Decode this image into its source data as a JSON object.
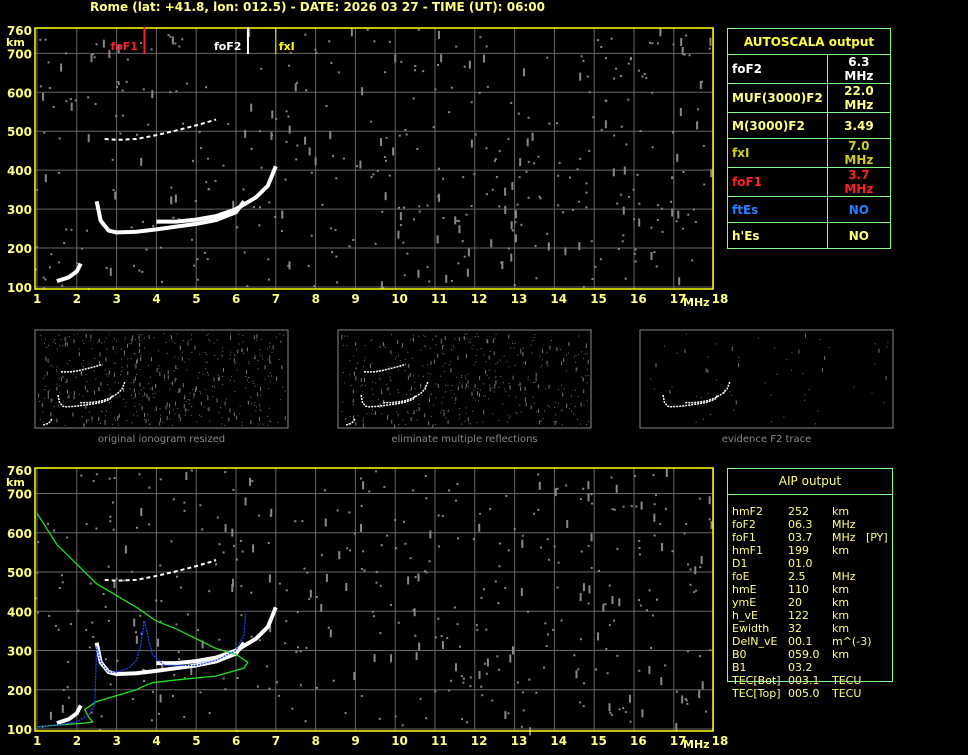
{
  "title": "Rome (lat: +41.8, lon: 012.5) - DATE: 2026 03 27 - TIME (UT): 06:00",
  "autoscala": {
    "header": "AUTOSCALA output",
    "rows": [
      {
        "label": "foF2",
        "value": "6.3 MHz",
        "color": "#ffffff"
      },
      {
        "label": "MUF(3000)F2",
        "value": "22.0 MHz",
        "color": "#ffff80"
      },
      {
        "label": "M(3000)F2",
        "value": "3.49",
        "color": "#ffff80"
      },
      {
        "label": "fxI",
        "value": "7.0 MHz",
        "color": "#d0d020"
      },
      {
        "label": "foF1",
        "value": "3.7 MHz",
        "color": "#ff2020"
      },
      {
        "label": "ftEs",
        "value": "NO",
        "color": "#2080ff"
      },
      {
        "label": "h'Es",
        "value": "NO",
        "color": "#ffff80"
      }
    ]
  },
  "aip": {
    "header": "AIP output",
    "rows": [
      [
        "hmF2",
        "252",
        "km",
        ""
      ],
      [
        "foF2",
        "06.3",
        "MHz",
        ""
      ],
      [
        "foF1",
        "03.7",
        "MHz",
        "[PY]"
      ],
      [
        "hmF1",
        "199",
        "km",
        ""
      ],
      [
        "D1",
        "01.0",
        "",
        ""
      ],
      [
        "foE",
        "2.5",
        "MHz",
        ""
      ],
      [
        "hmE",
        "110",
        "km",
        ""
      ],
      [
        "ymE",
        "20",
        "km",
        ""
      ],
      [
        "h_vE",
        "122",
        "km",
        ""
      ],
      [
        "Ewidth",
        "32",
        "km",
        ""
      ],
      [
        "DelN_vE",
        "00.1",
        "m^(-3)",
        ""
      ],
      [
        "B0",
        "059.0",
        "km",
        ""
      ],
      [
        "B1",
        "03.2",
        "",
        ""
      ],
      [
        "TEC[Bot]",
        "003.1",
        "TECU",
        ""
      ],
      [
        "TEC[Top]",
        "005.0",
        "TECU",
        ""
      ]
    ]
  },
  "captions": [
    "original ionogram resized",
    "eliminate multiple reflections",
    "evidence F2 trace"
  ],
  "chart_data": [
    {
      "type": "scatter",
      "xlabel": "MHz",
      "ylabel": "km",
      "xlim": [
        1,
        18
      ],
      "ylim": [
        100,
        760
      ],
      "xticks": [
        1,
        2,
        3,
        4,
        5,
        6,
        7,
        8,
        9,
        10,
        11,
        12,
        13,
        14,
        15,
        16,
        17,
        18
      ],
      "yticks": [
        100,
        200,
        300,
        400,
        500,
        600,
        700,
        760
      ],
      "grid": true,
      "markers": [
        {
          "label": "foF1",
          "freq": 3.7,
          "color": "#ff2020"
        },
        {
          "label": "foF2",
          "freq": 6.3,
          "color": "#ffffff"
        },
        {
          "label": "fxI",
          "freq": 7.0,
          "color": "#ffff00"
        }
      ],
      "traces": [
        {
          "mode": "E",
          "points": [
            [
              1.5,
              115
            ],
            [
              1.8,
              125
            ],
            [
              2.0,
              140
            ],
            [
              2.1,
              160
            ]
          ]
        },
        {
          "mode": "F-O",
          "points": [
            [
              2.5,
              320
            ],
            [
              2.6,
              270
            ],
            [
              2.8,
              245
            ],
            [
              3,
              240
            ],
            [
              3.5,
              242
            ],
            [
              4,
              248
            ],
            [
              4.5,
              255
            ],
            [
              5,
              262
            ],
            [
              5.5,
              272
            ],
            [
              6,
              292
            ],
            [
              6.2,
              320
            ]
          ]
        },
        {
          "mode": "F-X",
          "points": [
            [
              4,
              268
            ],
            [
              4.5,
              268
            ],
            [
              5,
              273
            ],
            [
              5.5,
              282
            ],
            [
              6,
              300
            ],
            [
              6.5,
              330
            ],
            [
              6.8,
              360
            ],
            [
              7,
              410
            ]
          ]
        },
        {
          "mode": "2F",
          "points": [
            [
              2.7,
              480
            ],
            [
              3,
              478
            ],
            [
              3.5,
              480
            ],
            [
              4,
              490
            ],
            [
              4.5,
              502
            ],
            [
              5,
              515
            ],
            [
              5.5,
              530
            ]
          ]
        }
      ]
    },
    {
      "type": "line",
      "xlabel": "MHz",
      "ylabel": "km",
      "xlim": [
        1,
        18
      ],
      "ylim": [
        100,
        760
      ],
      "series": [
        {
          "color": "#20e020",
          "points": [
            [
              1,
              650
            ],
            [
              1.5,
              570
            ],
            [
              2,
              520
            ],
            [
              2.5,
              470
            ],
            [
              3,
              440
            ],
            [
              3.5,
              410
            ],
            [
              4,
              375
            ],
            [
              4.5,
              355
            ],
            [
              5,
              330
            ],
            [
              5.5,
              305
            ],
            [
              6,
              290
            ],
            [
              6.3,
              270
            ],
            [
              6.2,
              255
            ],
            [
              5.5,
              235
            ],
            [
              4.5,
              225
            ],
            [
              3.9,
              218
            ],
            [
              3.7,
              210
            ],
            [
              3.5,
              200
            ],
            [
              3,
              185
            ],
            [
              2.5,
              170
            ],
            [
              2.2,
              150
            ],
            [
              2.3,
              130
            ],
            [
              2.4,
              118
            ],
            [
              2.2,
              115
            ],
            [
              1.5,
              110
            ],
            [
              1,
              105
            ]
          ]
        },
        {
          "color": "#2040ff",
          "points": [
            [
              1,
              105
            ],
            [
              1.5,
              110
            ],
            [
              2,
              118
            ],
            [
              2.3,
              135
            ],
            [
              2.45,
              162
            ],
            [
              2.5,
              310
            ],
            [
              2.6,
              270
            ],
            [
              2.8,
              245
            ],
            [
              3,
              245
            ],
            [
              3.3,
              255
            ],
            [
              3.5,
              275
            ],
            [
              3.6,
              310
            ],
            [
              3.7,
              375
            ],
            [
              3.8,
              330
            ],
            [
              3.9,
              290
            ],
            [
              4.2,
              262
            ],
            [
              5,
              262
            ],
            [
              5.5,
              275
            ],
            [
              6,
              300
            ],
            [
              6.2,
              340
            ],
            [
              6.25,
              405
            ]
          ]
        }
      ]
    }
  ]
}
